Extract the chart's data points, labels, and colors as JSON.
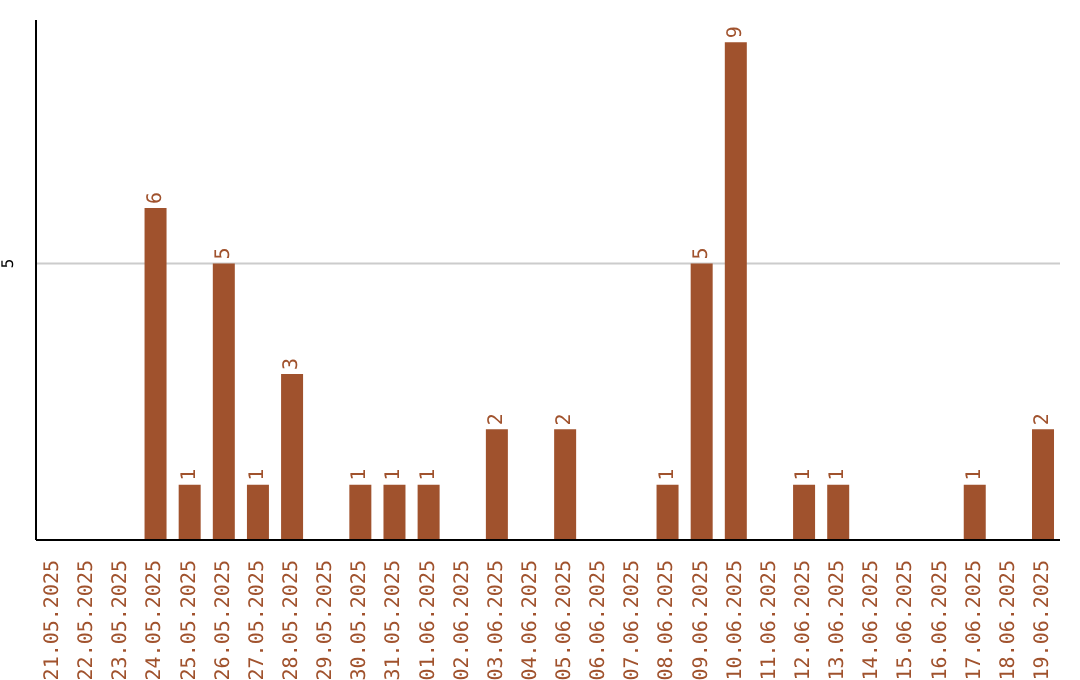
{
  "chart_data": {
    "type": "bar",
    "categories": [
      "21.05.2025",
      "22.05.2025",
      "23.05.2025",
      "24.05.2025",
      "25.05.2025",
      "26.05.2025",
      "27.05.2025",
      "28.05.2025",
      "29.05.2025",
      "30.05.2025",
      "31.05.2025",
      "01.06.2025",
      "02.06.2025",
      "03.06.2025",
      "04.06.2025",
      "05.06.2025",
      "06.06.2025",
      "07.06.2025",
      "08.06.2025",
      "09.06.2025",
      "10.06.2025",
      "11.06.2025",
      "12.06.2025",
      "13.06.2025",
      "14.06.2025",
      "15.06.2025",
      "16.06.2025",
      "17.06.2025",
      "18.06.2025",
      "19.06.2025"
    ],
    "values": [
      0,
      0,
      0,
      6,
      1,
      5,
      1,
      3,
      0,
      1,
      1,
      1,
      0,
      2,
      0,
      2,
      0,
      0,
      1,
      5,
      9,
      0,
      1,
      1,
      0,
      0,
      0,
      1,
      0,
      2
    ],
    "value_labels": [
      null,
      null,
      null,
      "6",
      "1",
      "5",
      "1",
      "3",
      null,
      "1",
      "1",
      "1",
      null,
      "2",
      null,
      "2",
      null,
      null,
      "1",
      "5",
      "9",
      null,
      "1",
      "1",
      null,
      null,
      null,
      "1",
      null,
      "2"
    ],
    "color": "#a0522d",
    "ylim": [
      0,
      9.4
    ],
    "yticks": [
      5
    ],
    "grid": "y"
  }
}
